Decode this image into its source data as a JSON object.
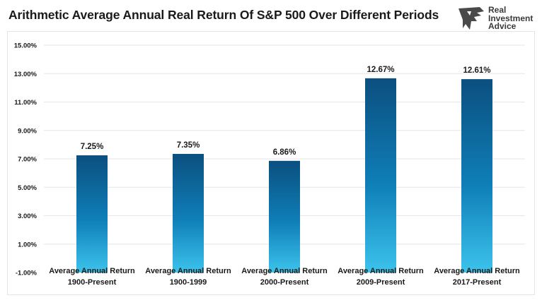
{
  "chart_data": {
    "type": "bar",
    "title": "Arithmetic Average Annual Real Return Of S&P 500 Over Different Periods",
    "categories": [
      [
        "Average Annual Return",
        "1900-Present"
      ],
      [
        "Average Annual Return",
        "1900-1999"
      ],
      [
        "Average Annual Return",
        "2000-Present"
      ],
      [
        "Average Annual Return",
        "2009-Present"
      ],
      [
        "Average Annual Return",
        "2017-Present"
      ]
    ],
    "values": [
      7.25,
      7.35,
      6.86,
      12.67,
      12.61
    ],
    "data_labels": [
      "7.25%",
      "7.35%",
      "6.86%",
      "12.67%",
      "12.61%"
    ],
    "ylim": [
      -1,
      15
    ],
    "yticks": [
      15,
      13,
      11,
      9,
      7,
      5,
      3,
      1,
      -1
    ],
    "ytick_labels": [
      "15.00%",
      "13.00%",
      "11.00%",
      "9.00%",
      "7.00%",
      "5.00%",
      "3.00%",
      "1.00%",
      "-1.00%"
    ],
    "grid": true,
    "colors": {
      "bar_top": "#0b4f7f",
      "bar_mid": "#0f7fb8",
      "bar_bottom": "#3cc3ec",
      "grid": "#e6e6e6"
    }
  },
  "logo": {
    "line1": "Real",
    "line2": "Investment",
    "line3": "Advice"
  }
}
